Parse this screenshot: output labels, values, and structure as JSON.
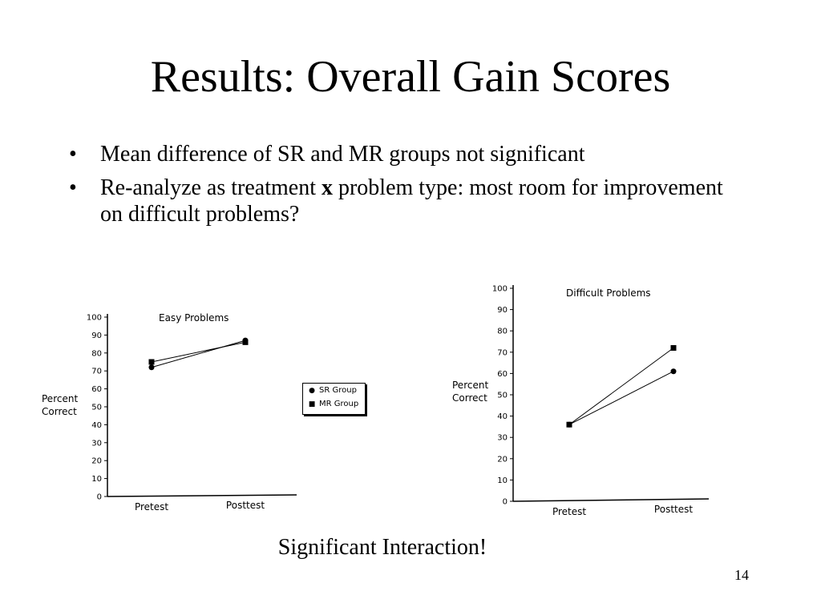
{
  "slide": {
    "title": "Results: Overall Gain Scores",
    "bullets": [
      {
        "parts": [
          "Mean difference of SR and MR groups not significant"
        ]
      },
      {
        "parts": [
          "Re-analyze as treatment ",
          "x",
          " problem type: most room for improvement on difficult problems?"
        ]
      }
    ],
    "bullet_symbol": "•",
    "footer_note": "Significant Interaction!",
    "page_number": "14"
  },
  "legend": {
    "items": [
      {
        "label": "SR Group",
        "marker": "circle"
      },
      {
        "label": "MR Group",
        "marker": "square"
      }
    ]
  },
  "chart_data": [
    {
      "type": "line",
      "title": "Easy Problems",
      "ylabel": "Percent Correct",
      "xlabel": "",
      "categories": [
        "Pretest",
        "Posttest"
      ],
      "ylim": [
        0,
        100
      ],
      "yticks": [
        0,
        10,
        20,
        30,
        40,
        50,
        60,
        70,
        80,
        90,
        100
      ],
      "series": [
        {
          "name": "SR Group",
          "marker": "circle",
          "values": [
            72,
            87
          ]
        },
        {
          "name": "MR Group",
          "marker": "square",
          "values": [
            75,
            86
          ]
        }
      ],
      "grid": false
    },
    {
      "type": "line",
      "title": "Difficult Problems",
      "ylabel": "Percent Correct",
      "xlabel": "",
      "categories": [
        "Pretest",
        "Posttest"
      ],
      "ylim": [
        0,
        100
      ],
      "yticks": [
        0,
        10,
        20,
        30,
        40,
        50,
        60,
        70,
        80,
        90,
        100
      ],
      "series": [
        {
          "name": "SR Group",
          "marker": "circle",
          "values": [
            36,
            61
          ]
        },
        {
          "name": "MR Group",
          "marker": "square",
          "values": [
            36,
            72
          ]
        }
      ],
      "grid": false
    }
  ],
  "colors": {
    "ink": "#000000",
    "background": "#ffffff"
  }
}
